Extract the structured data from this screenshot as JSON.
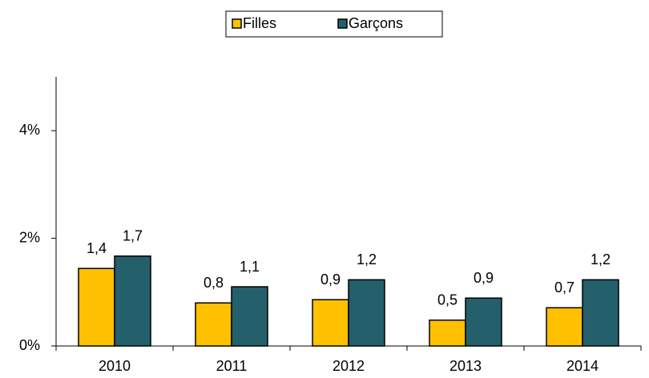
{
  "chart_data": {
    "type": "bar",
    "categories": [
      "2010",
      "2011",
      "2012",
      "2013",
      "2014"
    ],
    "series": [
      {
        "name": "Filles",
        "color": "#ffc000",
        "values": [
          1.44,
          0.8,
          0.86,
          0.48,
          0.71
        ],
        "value_labels": [
          "1,4",
          "0,8",
          "0,9",
          "0,5",
          "0,7"
        ]
      },
      {
        "name": "Garçons",
        "color": "#245f6c",
        "values": [
          1.67,
          1.1,
          1.23,
          0.89,
          1.23
        ],
        "value_labels": [
          "1,7",
          "1,1",
          "1,2",
          "0,9",
          "1,2"
        ]
      }
    ],
    "ylim": [
      0,
      5
    ],
    "yticks": [
      {
        "value": 0,
        "label": "0%"
      },
      {
        "value": 2,
        "label": "2%"
      },
      {
        "value": 4,
        "label": "4%"
      }
    ],
    "legend": "top"
  }
}
